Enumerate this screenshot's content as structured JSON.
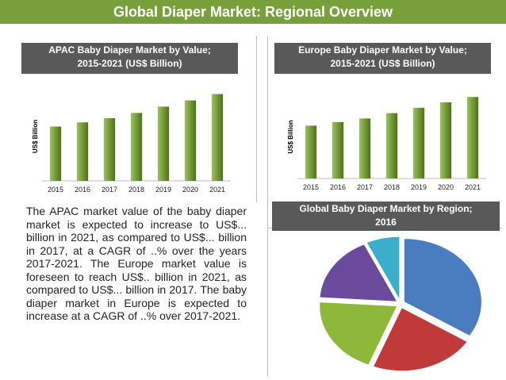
{
  "banner": {
    "title": "Global Diaper Market: Regional Overview"
  },
  "colors": {
    "banner": "#77a03a",
    "header": "#595959",
    "bar": "#77a03a"
  },
  "apac_chart": {
    "header_line1": "APAC Baby Diaper Market by Value;",
    "header_line2": "2015-2021 (US$ Billion)"
  },
  "europe_chart": {
    "header_line1": "Europe Baby Diaper Market by Value;",
    "header_line2": "2015-2021 (US$ Billion)"
  },
  "pie_chart": {
    "header_line1": "Global Baby Diaper Market by Region;",
    "header_line2": "2016"
  },
  "body_text": "The APAC market value of the baby diaper market is expected to increase to US$... billion in 2021, as compared to US$... billion in 2017, at a CAGR of ..% over the years 2017-2021. The Europe market value is foreseen to reach US$.. billion in 2021, as compared to US$... billion in 2017. The baby diaper market in Europe is expected to increase at a CAGR of ..% over 2017-2021.",
  "chart_data": [
    {
      "type": "bar",
      "title": "APAC Baby Diaper Market by Value; 2015-2021 (US$ Billion)",
      "categories": [
        "2015",
        "2016",
        "2017",
        "2018",
        "2019",
        "2020",
        "2021"
      ],
      "values": [
        5.2,
        5.6,
        6.0,
        6.5,
        7.1,
        7.7,
        8.3
      ],
      "ylabel": "US$ Billion",
      "ylim": [
        0,
        8.5
      ],
      "grid": false,
      "color": "#77a03a"
    },
    {
      "type": "bar",
      "title": "Europe Baby Diaper Market by Value; 2015-2021 (US$ Billion)",
      "categories": [
        "2015",
        "2016",
        "2017",
        "2018",
        "2019",
        "2020",
        "2021"
      ],
      "values": [
        5.9,
        6.3,
        6.7,
        7.3,
        7.9,
        8.5,
        9.1
      ],
      "ylabel": "US$ Billion",
      "ylim": [
        0,
        9.3
      ],
      "grid": false,
      "color": "#77a03a"
    },
    {
      "type": "pie",
      "title": "Global Baby Diaper Market by Region; 2016",
      "values": [
        34,
        22,
        20,
        17,
        7
      ],
      "colors": [
        "#4a7cc0",
        "#c03a3a",
        "#8db83a",
        "#6a4a9a",
        "#3aaecb"
      ],
      "legend": "none"
    }
  ]
}
